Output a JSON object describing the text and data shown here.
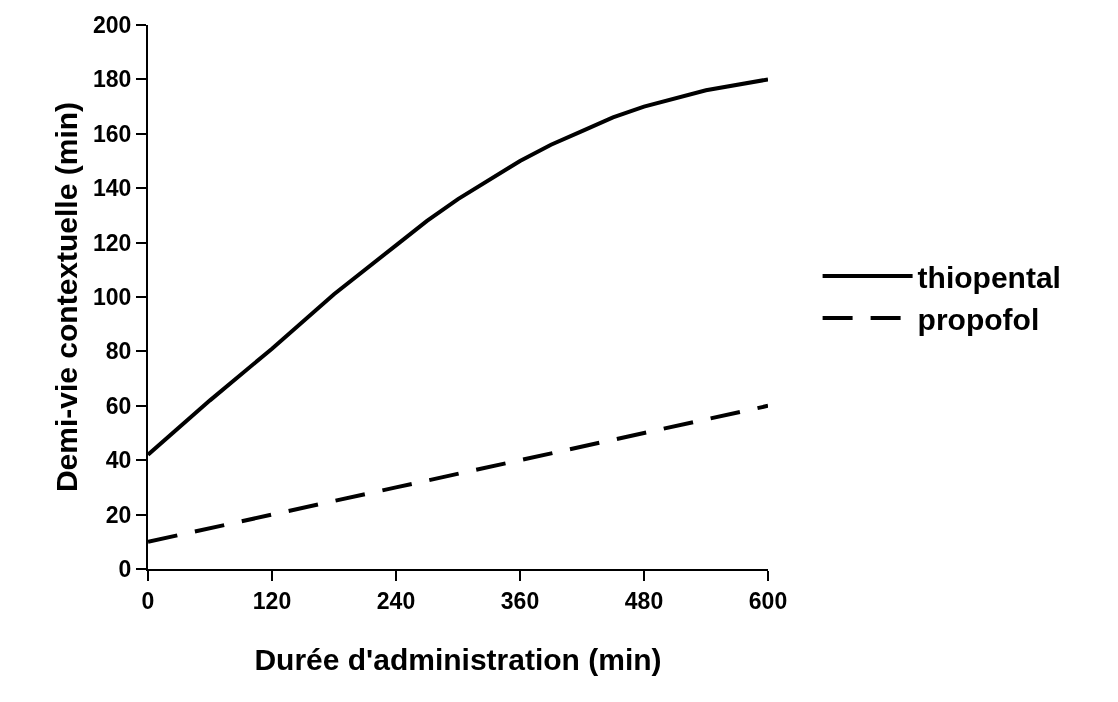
{
  "chart_data": {
    "type": "line",
    "xlabel": "Durée d'administration (min)",
    "ylabel": "Demi-vie contextuelle (min)",
    "xlim": [
      0,
      600
    ],
    "xticks": [
      0,
      120,
      240,
      360,
      480,
      600
    ],
    "ylim": [
      0,
      200
    ],
    "yticks": [
      0,
      20,
      40,
      60,
      80,
      100,
      120,
      140,
      160,
      180,
      200
    ],
    "grid": false,
    "legend": "right",
    "marker": "none",
    "series": [
      {
        "name": "thiopental",
        "color": "#000000",
        "line_style": "solid",
        "x": [
          0,
          60,
          120,
          180,
          240,
          270,
          300,
          360,
          390,
          420,
          450,
          480,
          540,
          600
        ],
        "values": [
          42,
          62,
          81,
          101,
          119,
          128,
          136,
          150,
          156,
          161,
          166,
          170,
          176,
          180
        ]
      },
      {
        "name": "propofol",
        "color": "#000000",
        "line_style": "dashed",
        "x": [
          0,
          120,
          240,
          360,
          480,
          600
        ],
        "values": [
          10,
          20,
          30,
          40,
          50,
          60
        ]
      }
    ]
  }
}
